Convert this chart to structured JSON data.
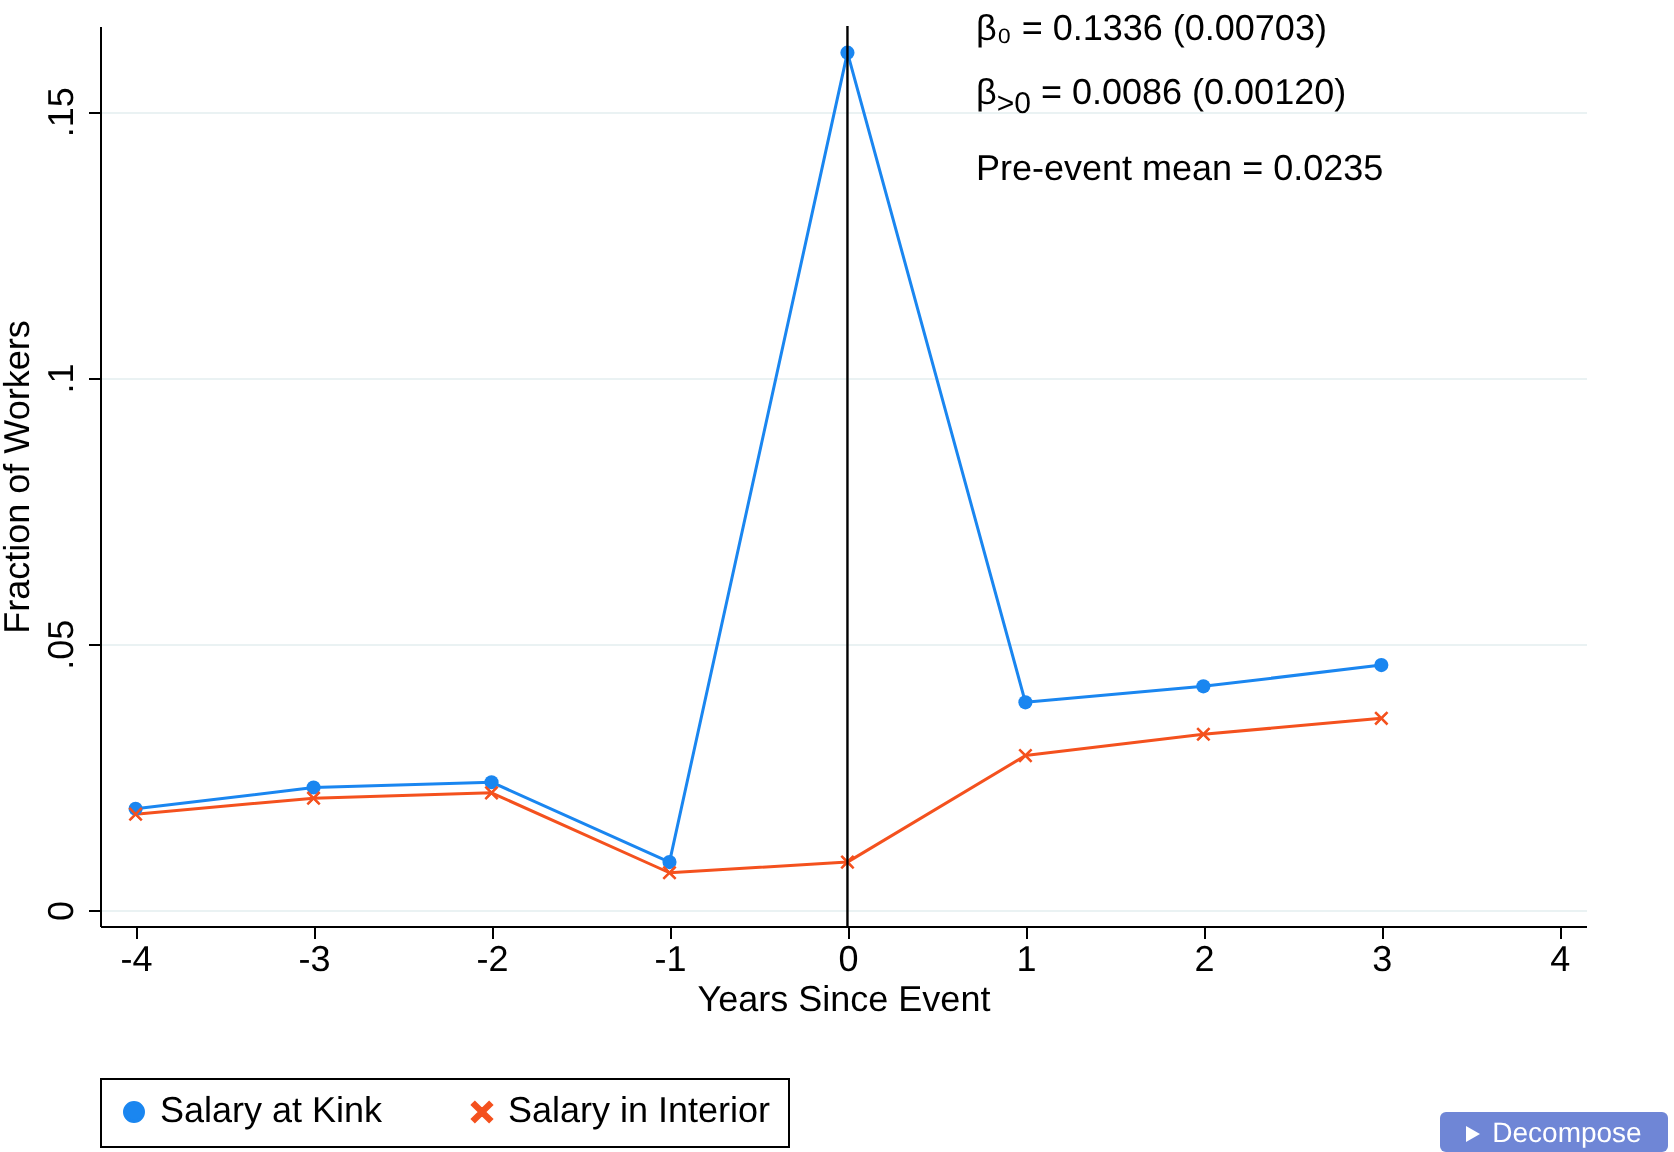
{
  "chart_data": {
    "type": "line",
    "xlabel": "Years Since Event",
    "ylabel": "Fraction of Workers",
    "x": [
      -4,
      -3,
      -2,
      -1,
      0,
      1,
      2,
      3
    ],
    "series": [
      {
        "name": "Salary at Kink",
        "color": "#1a86f0",
        "marker": "circle",
        "values": [
          0.019,
          0.023,
          0.024,
          0.009,
          0.161,
          0.039,
          0.042,
          0.046
        ]
      },
      {
        "name": "Salary in Interior",
        "color": "#f4511e",
        "marker": "cross",
        "values": [
          0.018,
          0.021,
          0.022,
          0.007,
          0.009,
          0.029,
          0.033,
          0.036
        ]
      }
    ],
    "xlim": [
      -4.2,
      4.15
    ],
    "xticks": [
      -4,
      -3,
      -2,
      -1,
      0,
      1,
      2,
      3,
      4
    ],
    "ylim": [
      -0.003,
      0.166
    ],
    "yticks": [
      0,
      {
        "value": 0.05,
        "label": ".05"
      },
      {
        "value": 0.1,
        "label": ".1"
      },
      {
        "value": 0.15,
        "label": ".15"
      }
    ],
    "grid": "y",
    "legend": "bottom",
    "ref_lines": [
      {
        "axis": "x",
        "value": 0,
        "color": "#000000"
      }
    ],
    "annotations": [
      "β₀ = 0.1336 (0.00703)",
      "β$_{>0}$ = 0.0086 (0.00120)",
      "Pre-event mean = 0.0235",
      "Decompose"
    ]
  }
}
